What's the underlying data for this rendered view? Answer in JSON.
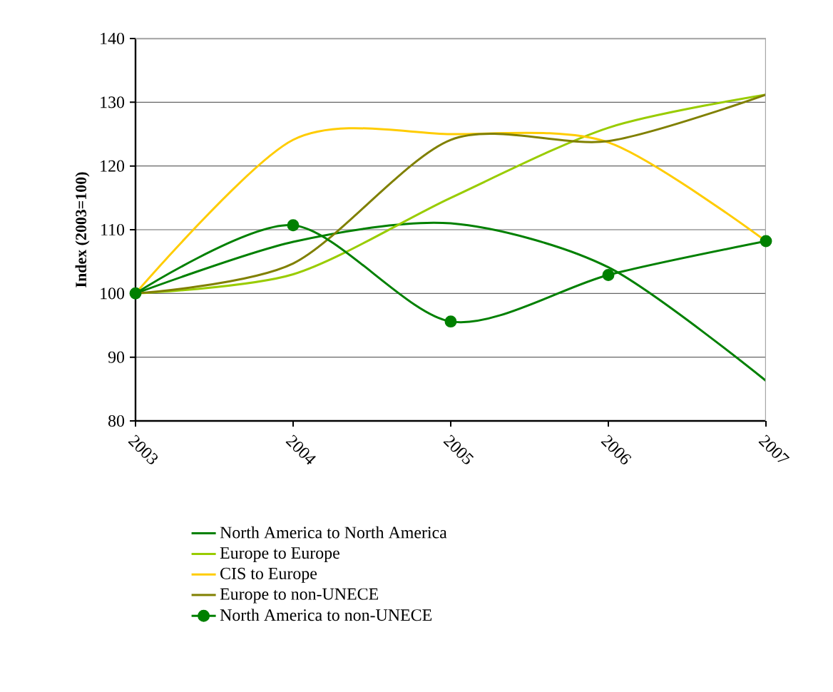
{
  "chart_data": {
    "type": "line",
    "ylabel": "**Index (2003=100)**",
    "categories": [
      "2003",
      "2004",
      "2005",
      "2006",
      "2007"
    ],
    "ylim": [
      80,
      140
    ],
    "yticks": [
      80,
      90,
      100,
      110,
      120,
      130,
      140
    ],
    "grid": "y",
    "legend": "bottom",
    "line_style": "solid",
    "series": [
      {
        "name": "North America to North America",
        "color": "#008000",
        "values": [
          100,
          108.1,
          111,
          104.1,
          86.3
        ],
        "marker": "none"
      },
      {
        "name": "Europe to Europe",
        "color": "#99cc00",
        "values": [
          100,
          103,
          115,
          126,
          131.2
        ],
        "marker": "none"
      },
      {
        "name": "CIS to Europe",
        "color": "#ffcc00",
        "values": [
          100,
          124.1,
          125,
          123.7,
          108.2
        ],
        "marker": "none"
      },
      {
        "name": "Europe to non-UNECE",
        "color": "#808000",
        "values": [
          100,
          104.7,
          124.1,
          123.9,
          131.2
        ],
        "marker": "none"
      },
      {
        "name": "North America to non-UNECE",
        "color": "#008000",
        "values": [
          100,
          110.7,
          95.6,
          102.9,
          108.2
        ],
        "marker": "circle"
      }
    ]
  }
}
